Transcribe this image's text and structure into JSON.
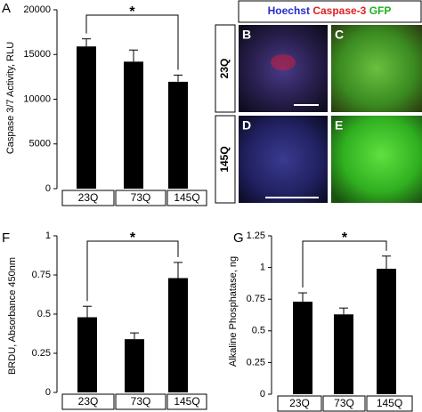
{
  "chart_data": [
    {
      "type": "bar",
      "panel": "A",
      "ylabel": "Caspase 3/7 Activity, RLU",
      "categories": [
        "23Q",
        "73Q",
        "145Q"
      ],
      "values": [
        15900,
        14200,
        11950
      ],
      "errors": [
        850,
        1300,
        750
      ],
      "color": "#000000",
      "ylim": [
        0,
        20000
      ],
      "yticks": [
        0,
        5000,
        10000,
        15000,
        20000
      ],
      "annotation": "*"
    },
    {
      "type": "bar",
      "panel": "F",
      "ylabel": "BRDU, Absorbance 450nm",
      "categories": [
        "23Q",
        "73Q",
        "145Q"
      ],
      "values": [
        0.48,
        0.34,
        0.73
      ],
      "errors": [
        0.07,
        0.04,
        0.1
      ],
      "color": "#000000",
      "ylim": [
        0,
        1
      ],
      "yticks": [
        0,
        0.25,
        0.5,
        0.75,
        1
      ],
      "annotation": "*"
    },
    {
      "type": "bar",
      "panel": "G",
      "ylabel": "Alkaline Phosphatase, ng",
      "categories": [
        "23Q",
        "73Q",
        "145Q"
      ],
      "values": [
        0.73,
        0.63,
        0.99
      ],
      "errors": [
        0.07,
        0.05,
        0.1
      ],
      "color": "#000000",
      "ylim": [
        0,
        1.25
      ],
      "yticks": [
        0,
        0.25,
        0.5,
        0.75,
        1,
        1.25
      ],
      "annotation": "*"
    }
  ],
  "microscopy": {
    "stains": [
      {
        "label": "Hoechst",
        "color": "#2a2ad0"
      },
      {
        "label": "Caspase-3",
        "color": "#e02020"
      },
      {
        "label": "GFP",
        "color": "#20b020"
      }
    ],
    "rows": [
      "23Q",
      "145Q"
    ],
    "panels": [
      "B",
      "C",
      "D",
      "E"
    ]
  }
}
